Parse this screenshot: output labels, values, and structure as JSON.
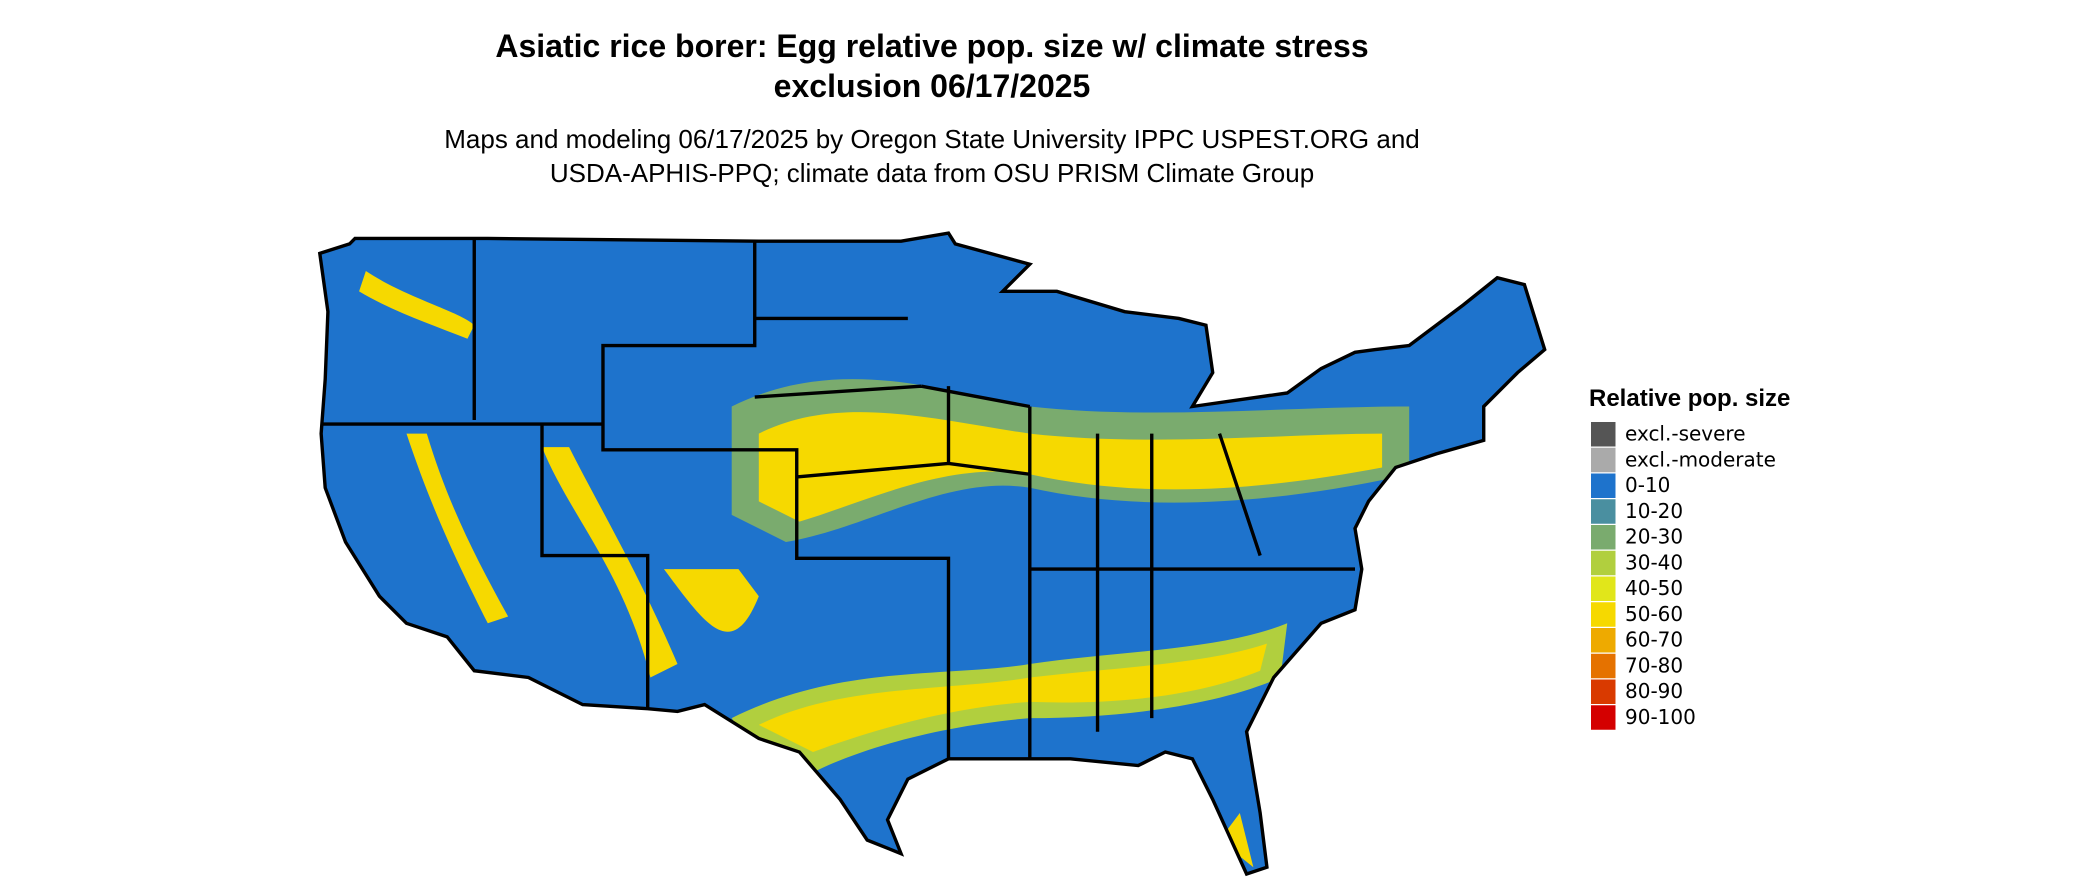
{
  "title_lines": [
    "Asiatic rice borer: Egg relative pop. size w/ climate stress",
    "exclusion 06/17/2025"
  ],
  "subtitle_lines": [
    "Maps and modeling 06/17/2025 by Oregon State University IPPC USPEST.ORG and",
    "USDA-APHIS-PPQ; climate data from OSU PRISM Climate Group"
  ],
  "legend": {
    "title": "Relative pop. size",
    "items": [
      {
        "label": "excl.-severe",
        "color": "#555555"
      },
      {
        "label": "excl.-moderate",
        "color": "#aaaaaa"
      },
      {
        "label": "0-10",
        "color": "#1e73cc"
      },
      {
        "label": "10-20",
        "color": "#4a8fa0"
      },
      {
        "label": "20-30",
        "color": "#7aab6e"
      },
      {
        "label": "30-40",
        "color": "#b1cf3e"
      },
      {
        "label": "40-50",
        "color": "#e1e61a"
      },
      {
        "label": "50-60",
        "color": "#f6d900"
      },
      {
        "label": "60-70",
        "color": "#eeaa00"
      },
      {
        "label": "70-80",
        "color": "#e57200"
      },
      {
        "label": "80-90",
        "color": "#d93a00"
      },
      {
        "label": "90-100",
        "color": "#d40000"
      }
    ]
  }
}
